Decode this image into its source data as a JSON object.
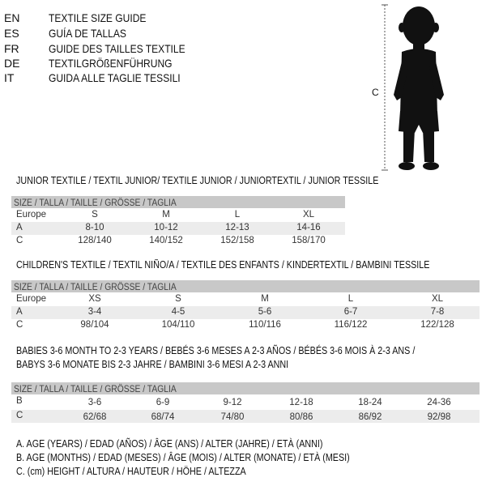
{
  "languages": [
    {
      "code": "EN",
      "title": "TEXTILE SIZE GUIDE"
    },
    {
      "code": "ES",
      "title": "GUÍA DE TALLAS"
    },
    {
      "code": "FR",
      "title": "GUIDE DES TAILLES TEXTILE"
    },
    {
      "code": "DE",
      "title": "TEXTILGRÖßENFÜHRUNG"
    },
    {
      "code": "IT",
      "title": "GUIDA ALLE TAGLIE TESSILI"
    }
  ],
  "figure": {
    "measure_label": "C",
    "icon": "child-silhouette-icon"
  },
  "size_header": "SIZE / TALLA / TAILLE / GRÖSSE / TAGLIA",
  "tables": [
    {
      "title": "JUNIOR TEXTILE / TEXTIL JUNIOR/ TEXTILE JUNIOR / JUNIORTEXTIL / JUNIOR TESSILE",
      "rows": [
        {
          "label": "Europe",
          "values": [
            "S",
            "M",
            "L",
            "XL"
          ]
        },
        {
          "label": "A",
          "values": [
            "8-10",
            "10-12",
            "12-13",
            "14-16"
          ]
        },
        {
          "label": "C",
          "values": [
            "128/140",
            "140/152",
            "152/158",
            "158/170"
          ]
        }
      ]
    },
    {
      "title": "CHILDREN'S TEXTILE / TEXTIL NIÑO/A / TEXTILE DES ENFANTS / KINDERTEXTIL / BAMBINI TESSILE",
      "rows": [
        {
          "label": "Europe",
          "values": [
            "XS",
            "S",
            "M",
            "L",
            "XL"
          ]
        },
        {
          "label": "A",
          "values": [
            "3-4",
            "4-5",
            "5-6",
            "6-7",
            "7-8"
          ]
        },
        {
          "label": "C",
          "values": [
            "98/104",
            "104/110",
            "110/116",
            "116/122",
            "122/128"
          ]
        }
      ]
    },
    {
      "title": "BABIES 3-6 MONTH TO 2-3 YEARS / BEBÉS 3-6 MESES A 2-3 AÑOS / BÉBÉS 3-6 MOIS À 2-3 ANS /",
      "title2": "BABYS 3-6 MONATE BIS 2-3 JAHRE / BAMBINI 3-6 MESI A 2-3 ANNI",
      "rows": [
        {
          "label": "B",
          "values": [
            "3-6",
            "6-9",
            "9-12",
            "12-18",
            "18-24",
            "24-36"
          ]
        },
        {
          "label": "C",
          "values": [
            "62/68",
            "68/74",
            "74/80",
            "80/86",
            "86/92",
            "92/98"
          ]
        }
      ]
    }
  ],
  "legend": [
    "A. AGE (YEARS) / EDAD (AÑOS) / ÂGE (ANS) / ALTER (JAHRE) / ETÀ (ANNI)",
    "B. AGE (MONTHS) / EDAD (MESES) / ÂGE (MOIS) / ALTER (MONATE) / ETÀ (MESI)",
    "C. (cm) HEIGHT / ALTURA / HAUTEUR / HÖHE / ALTEZZA"
  ]
}
